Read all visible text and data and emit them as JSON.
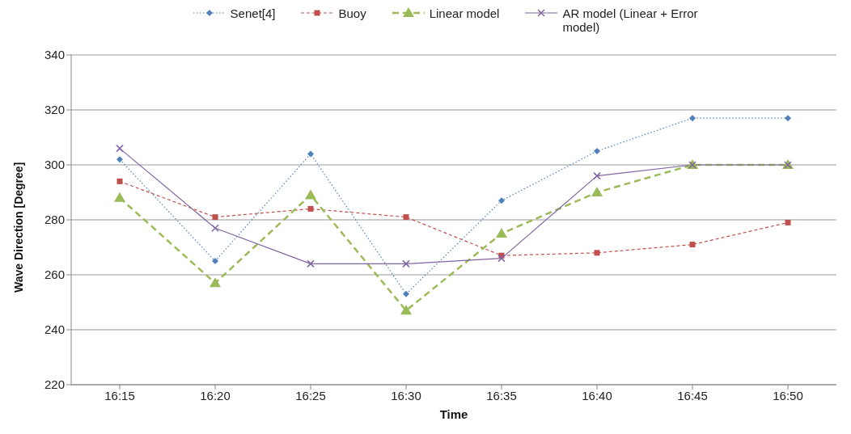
{
  "chart_data": {
    "type": "line",
    "xlabel": "Time",
    "ylabel": "Wave Direction [Degree]",
    "categories": [
      "16:15",
      "16:20",
      "16:25",
      "16:30",
      "16:35",
      "16:40",
      "16:45",
      "16:50"
    ],
    "series": [
      {
        "name": "Senet[4]",
        "color": "#4f81bd",
        "marker": "diamond",
        "line_style": "dotted",
        "values": [
          302,
          265,
          304,
          253,
          287,
          305,
          317,
          317
        ]
      },
      {
        "name": "Buoy",
        "color": "#c0504d",
        "marker": "square",
        "line_style": "dashed",
        "values": [
          294,
          281,
          284,
          281,
          267,
          268,
          271,
          279
        ]
      },
      {
        "name": "Linear model",
        "color": "#9bbb59",
        "marker": "triangle",
        "line_style": "dashed",
        "values": [
          288,
          257,
          289,
          247,
          275,
          290,
          300,
          300
        ]
      },
      {
        "name": "AR model (Linear + Error model)",
        "color": "#8064a2",
        "marker": "cross",
        "line_style": "solid",
        "values": [
          306,
          277,
          264,
          264,
          266,
          296,
          300,
          300
        ]
      }
    ],
    "ylim": [
      220,
      340
    ],
    "yticks": [
      220,
      240,
      260,
      280,
      300,
      320,
      340
    ],
    "grid": "y",
    "legend": "top"
  }
}
